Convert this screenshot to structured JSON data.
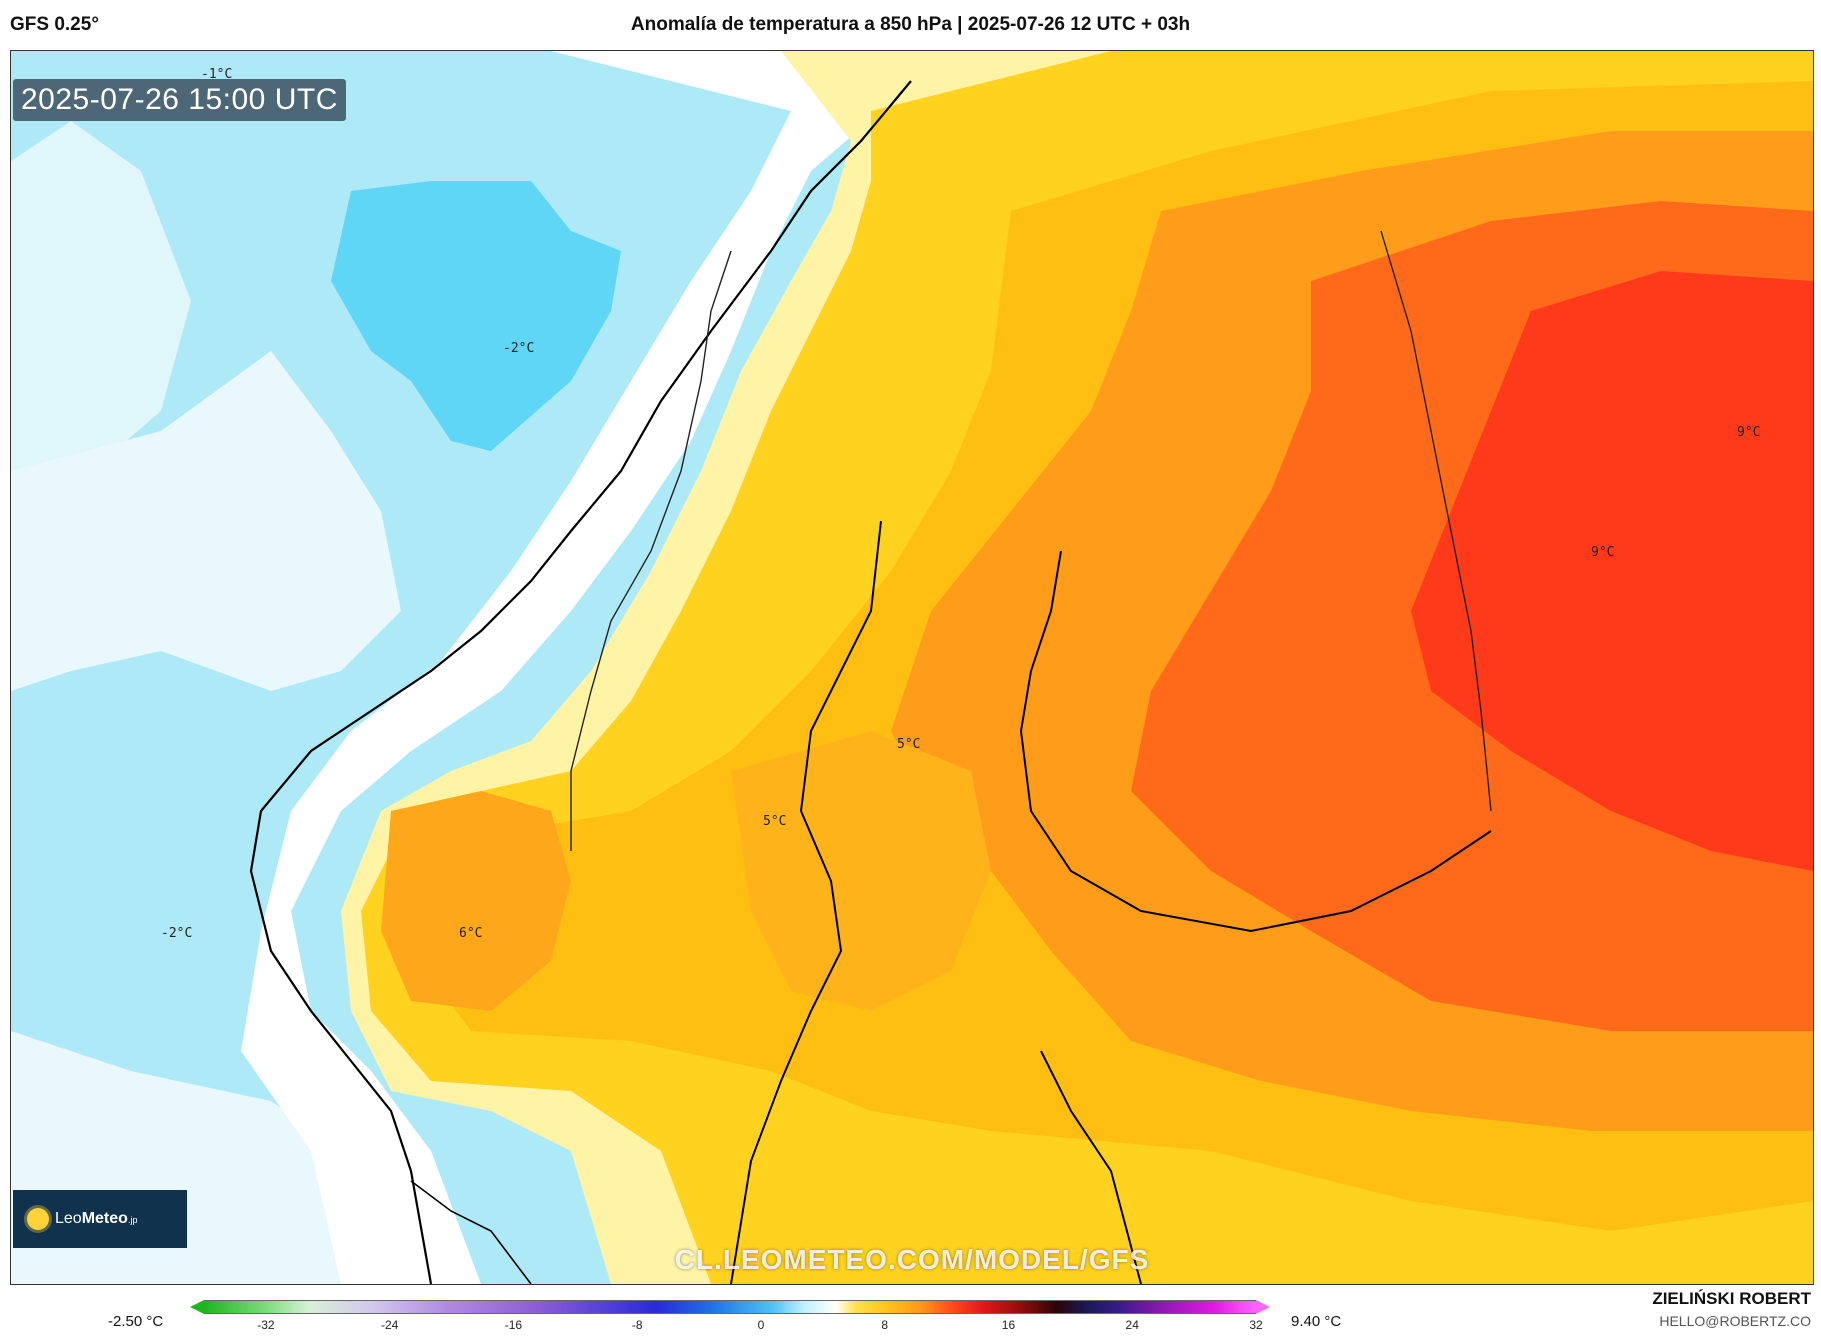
{
  "header": {
    "model": "GFS 0.25°",
    "title": "Anomalía de temperatura a 850 hPa | 2025-07-26 12 UTC + 03h"
  },
  "map": {
    "timestamp": "2025-07-26 15:00 UTC",
    "watermark": "CL.LEOMETEO.COM/MODEL/GFS",
    "logo": {
      "prefix": "Leo",
      "bold": "Meteo",
      "suffix": ".jp"
    },
    "labels": [
      {
        "id": "neg1-top",
        "text": "-1°C"
      },
      {
        "id": "neg2-north",
        "text": "-2°C"
      },
      {
        "id": "neg2-west",
        "text": "-2°C"
      },
      {
        "id": "pos5-a",
        "text": "5°C"
      },
      {
        "id": "pos5-b",
        "text": "5°C"
      },
      {
        "id": "pos6",
        "text": "6°C"
      },
      {
        "id": "pos9-a",
        "text": "9°C"
      },
      {
        "id": "pos9-b",
        "text": "9°C"
      }
    ],
    "colors": {
      "sea_cold": "#aee9f7",
      "cold_core": "#5fd6f5",
      "neutral": "#ffffff",
      "light_yellow": "#fff3a6",
      "yellow": "#ffd21f",
      "gold": "#ffbf12",
      "orange": "#ff9d1a",
      "dark_orange": "#ff6a1a",
      "red": "#ff3a1a",
      "coastline": "#000000"
    }
  },
  "colorbar": {
    "min_label": "-2.50 °C",
    "max_label": "9.40 °C",
    "ticks": [
      "-32",
      "-24",
      "-16",
      "-8",
      "0",
      "8",
      "16",
      "24",
      "32"
    ],
    "range": [
      -36,
      32
    ]
  },
  "credits": {
    "name": "ZIELIŃSKI ROBERT",
    "email": "HELLO@ROBERTZ.CO"
  }
}
